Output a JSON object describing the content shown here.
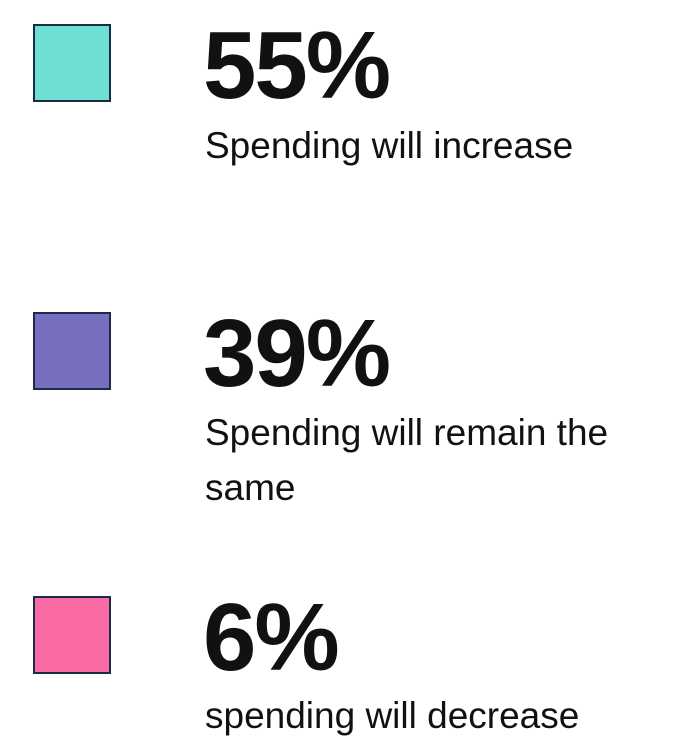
{
  "items": [
    {
      "percent": "55%",
      "label": "Spending will increase",
      "color": "#6ee0d3"
    },
    {
      "percent": "39%",
      "label": "Spending will remain the same",
      "color": "#776ec0"
    },
    {
      "percent": "6%",
      "label": "spending will decrease",
      "color": "#fb6aa4"
    }
  ]
}
